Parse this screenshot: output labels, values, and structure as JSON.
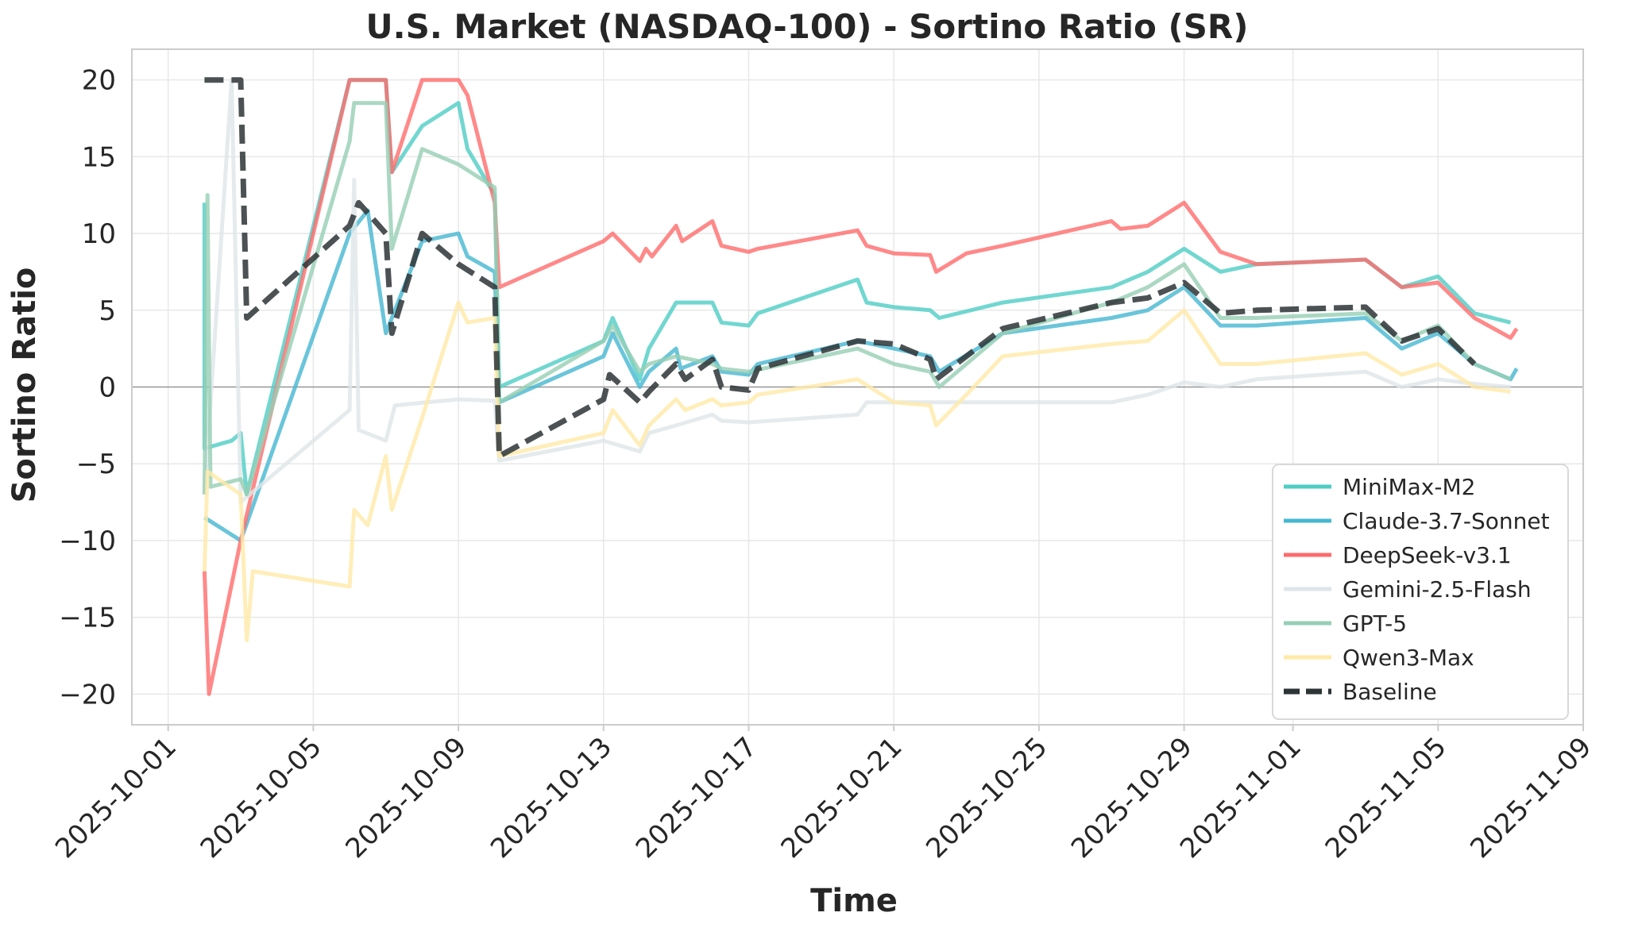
{
  "chart_data": {
    "type": "line",
    "title": "U.S. Market (NASDAQ-100) - Sortino Ratio (SR)",
    "xlabel": "Time",
    "ylabel": "Sortino Ratio",
    "x_axis_type": "date",
    "xlim": [
      "2025-09-30",
      "2025-11-09"
    ],
    "ylim": [
      -22,
      22
    ],
    "x_ticks": [
      "2025-10-01",
      "2025-10-05",
      "2025-10-09",
      "2025-10-13",
      "2025-10-17",
      "2025-10-21",
      "2025-10-25",
      "2025-10-29",
      "2025-11-01",
      "2025-11-05",
      "2025-11-09"
    ],
    "y_ticks": [
      -20,
      -15,
      -10,
      -5,
      0,
      5,
      10,
      15,
      20
    ],
    "y_tick_labels": [
      "−20",
      "−15",
      "−10",
      "−5",
      "0",
      "5",
      "10",
      "15",
      "20"
    ],
    "grid": true,
    "zero_line": true,
    "legend_position": "lower-right",
    "series": [
      {
        "name": "MiniMax-M2",
        "color": "#4ecdc4",
        "style": "solid",
        "points": [
          [
            "2025-10-02",
            12
          ],
          [
            "2025-10-02",
            -4
          ],
          [
            "2025-10-02 18:00",
            -3.5
          ],
          [
            "2025-10-03",
            -3
          ],
          [
            "2025-10-03 04:00",
            -7
          ],
          [
            "2025-10-06",
            20
          ],
          [
            "2025-10-07",
            20
          ],
          [
            "2025-10-07 04:00",
            14
          ],
          [
            "2025-10-08",
            17
          ],
          [
            "2025-10-09",
            18.5
          ],
          [
            "2025-10-09 06:00",
            15.5
          ],
          [
            "2025-10-10",
            12.5
          ],
          [
            "2025-10-10 03:00",
            0
          ],
          [
            "2025-10-13",
            3
          ],
          [
            "2025-10-13 06:00",
            4.5
          ],
          [
            "2025-10-14",
            0.5
          ],
          [
            "2025-10-14 06:00",
            2.5
          ],
          [
            "2025-10-15",
            5.5
          ],
          [
            "2025-10-16",
            5.5
          ],
          [
            "2025-10-16 06:00",
            4.2
          ],
          [
            "2025-10-17",
            4
          ],
          [
            "2025-10-17 06:00",
            4.8
          ],
          [
            "2025-10-20",
            7
          ],
          [
            "2025-10-20 06:00",
            5.5
          ],
          [
            "2025-10-21",
            5.2
          ],
          [
            "2025-10-22",
            5
          ],
          [
            "2025-10-22 06:00",
            4.5
          ],
          [
            "2025-10-24",
            5.5
          ],
          [
            "2025-10-27",
            6.5
          ],
          [
            "2025-10-28",
            7.5
          ],
          [
            "2025-10-29",
            9
          ],
          [
            "2025-10-30",
            7.5
          ],
          [
            "2025-10-31",
            8
          ],
          [
            "2025-11-03",
            8.3
          ],
          [
            "2025-11-04",
            6.5
          ],
          [
            "2025-11-05",
            7.2
          ],
          [
            "2025-11-06",
            4.8
          ],
          [
            "2025-11-07",
            4.2
          ]
        ]
      },
      {
        "name": "Claude-3.7-Sonnet",
        "color": "#45b7d1",
        "style": "solid",
        "points": [
          [
            "2025-10-02",
            -8.5
          ],
          [
            "2025-10-03",
            -10
          ],
          [
            "2025-10-06",
            10
          ],
          [
            "2025-10-06 12:00",
            11.5
          ],
          [
            "2025-10-07",
            3.5
          ],
          [
            "2025-10-08",
            9.5
          ],
          [
            "2025-10-09",
            10
          ],
          [
            "2025-10-09 06:00",
            8.5
          ],
          [
            "2025-10-10",
            7.5
          ],
          [
            "2025-10-10 03:00",
            -1
          ],
          [
            "2025-10-13",
            2
          ],
          [
            "2025-10-13 06:00",
            3.5
          ],
          [
            "2025-10-14",
            0
          ],
          [
            "2025-10-14 06:00",
            1
          ],
          [
            "2025-10-15",
            2.5
          ],
          [
            "2025-10-15 03:00",
            1.2
          ],
          [
            "2025-10-16",
            2
          ],
          [
            "2025-10-16 06:00",
            1
          ],
          [
            "2025-10-17",
            0.8
          ],
          [
            "2025-10-17 06:00",
            1.5
          ],
          [
            "2025-10-20",
            3
          ],
          [
            "2025-10-21",
            2.5
          ],
          [
            "2025-10-22",
            2
          ],
          [
            "2025-10-22 06:00",
            1
          ],
          [
            "2025-10-24",
            3.5
          ],
          [
            "2025-10-27",
            4.5
          ],
          [
            "2025-10-28",
            5
          ],
          [
            "2025-10-29",
            6.5
          ],
          [
            "2025-10-30",
            4
          ],
          [
            "2025-10-31",
            4
          ],
          [
            "2025-11-03",
            4.5
          ],
          [
            "2025-11-04",
            2.5
          ],
          [
            "2025-11-05",
            3.5
          ],
          [
            "2025-11-06",
            1.5
          ],
          [
            "2025-11-07",
            0.5
          ],
          [
            "2025-11-07 04:00",
            1.2
          ]
        ]
      },
      {
        "name": "DeepSeek-v3.1",
        "color": "#ff6b6b",
        "style": "solid",
        "points": [
          [
            "2025-10-02",
            -12
          ],
          [
            "2025-10-02 03:00",
            -20
          ],
          [
            "2025-10-03",
            -10
          ],
          [
            "2025-10-06",
            20
          ],
          [
            "2025-10-07",
            20
          ],
          [
            "2025-10-07 04:00",
            14
          ],
          [
            "2025-10-08",
            20
          ],
          [
            "2025-10-09",
            20
          ],
          [
            "2025-10-09 06:00",
            19
          ],
          [
            "2025-10-10",
            12
          ],
          [
            "2025-10-10 03:00",
            6.5
          ],
          [
            "2025-10-13",
            9.5
          ],
          [
            "2025-10-13 06:00",
            10
          ],
          [
            "2025-10-14",
            8.2
          ],
          [
            "2025-10-14 04:00",
            9
          ],
          [
            "2025-10-14 08:00",
            8.5
          ],
          [
            "2025-10-15",
            10.5
          ],
          [
            "2025-10-15 04:00",
            9.5
          ],
          [
            "2025-10-16",
            10.8
          ],
          [
            "2025-10-16 06:00",
            9.2
          ],
          [
            "2025-10-17",
            8.8
          ],
          [
            "2025-10-17 06:00",
            9
          ],
          [
            "2025-10-20",
            10.2
          ],
          [
            "2025-10-20 06:00",
            9.2
          ],
          [
            "2025-10-21",
            8.7
          ],
          [
            "2025-10-22",
            8.6
          ],
          [
            "2025-10-22 04:00",
            7.5
          ],
          [
            "2025-10-23",
            8.7
          ],
          [
            "2025-10-24",
            9.2
          ],
          [
            "2025-10-27",
            10.8
          ],
          [
            "2025-10-27 06:00",
            10.3
          ],
          [
            "2025-10-28",
            10.5
          ],
          [
            "2025-10-29",
            12
          ],
          [
            "2025-10-30",
            8.8
          ],
          [
            "2025-10-31",
            8
          ],
          [
            "2025-11-03",
            8.3
          ],
          [
            "2025-11-04",
            6.5
          ],
          [
            "2025-11-05",
            6.8
          ],
          [
            "2025-11-06",
            4.5
          ],
          [
            "2025-11-07",
            3.2
          ],
          [
            "2025-11-07 04:00",
            3.8
          ]
        ]
      },
      {
        "name": "Gemini-2.5-Flash",
        "color": "#dfe6e9",
        "style": "solid",
        "points": [
          [
            "2025-10-02",
            -7
          ],
          [
            "2025-10-02 18:00",
            20
          ],
          [
            "2025-10-03",
            -7.5
          ],
          [
            "2025-10-06",
            -1.5
          ],
          [
            "2025-10-06 03:00",
            13.5
          ],
          [
            "2025-10-06 06:00",
            -2.8
          ],
          [
            "2025-10-07",
            -3.5
          ],
          [
            "2025-10-07 06:00",
            -1.2
          ],
          [
            "2025-10-09",
            -0.8
          ],
          [
            "2025-10-10",
            -0.9
          ],
          [
            "2025-10-10 03:00",
            -4.8
          ],
          [
            "2025-10-13",
            -3.5
          ],
          [
            "2025-10-14",
            -4.2
          ],
          [
            "2025-10-14 06:00",
            -3
          ],
          [
            "2025-10-15",
            -2.5
          ],
          [
            "2025-10-16",
            -1.8
          ],
          [
            "2025-10-16 06:00",
            -2.2
          ],
          [
            "2025-10-17",
            -2.3
          ],
          [
            "2025-10-20",
            -1.8
          ],
          [
            "2025-10-20 06:00",
            -1
          ],
          [
            "2025-10-21",
            -1
          ],
          [
            "2025-10-22",
            -1
          ],
          [
            "2025-10-24",
            -1
          ],
          [
            "2025-10-27",
            -1
          ],
          [
            "2025-10-28",
            -0.5
          ],
          [
            "2025-10-29",
            0.3
          ],
          [
            "2025-10-30",
            0
          ],
          [
            "2025-10-31",
            0.5
          ],
          [
            "2025-11-03",
            1
          ],
          [
            "2025-11-04",
            0
          ],
          [
            "2025-11-05",
            0.5
          ],
          [
            "2025-11-06",
            0.2
          ],
          [
            "2025-11-07",
            0
          ]
        ]
      },
      {
        "name": "GPT-5",
        "color": "#96ceb4",
        "style": "solid",
        "points": [
          [
            "2025-10-02",
            -7
          ],
          [
            "2025-10-02 02:00",
            12.5
          ],
          [
            "2025-10-02 04:00",
            -6.5
          ],
          [
            "2025-10-03",
            -6
          ],
          [
            "2025-10-03 04:00",
            -7
          ],
          [
            "2025-10-06",
            16
          ],
          [
            "2025-10-06 03:00",
            18.5
          ],
          [
            "2025-10-07",
            18.5
          ],
          [
            "2025-10-07 04:00",
            9
          ],
          [
            "2025-10-08",
            15.5
          ],
          [
            "2025-10-09",
            14.5
          ],
          [
            "2025-10-10",
            13
          ],
          [
            "2025-10-10 03:00",
            -1
          ],
          [
            "2025-10-13",
            3
          ],
          [
            "2025-10-13 06:00",
            4
          ],
          [
            "2025-10-14",
            1
          ],
          [
            "2025-10-14 06:00",
            1.5
          ],
          [
            "2025-10-15",
            2
          ],
          [
            "2025-10-16",
            1.5
          ],
          [
            "2025-10-16 06:00",
            1.2
          ],
          [
            "2025-10-17",
            1
          ],
          [
            "2025-10-20",
            2.5
          ],
          [
            "2025-10-21",
            1.5
          ],
          [
            "2025-10-22",
            1
          ],
          [
            "2025-10-22 06:00",
            0
          ],
          [
            "2025-10-24",
            3.5
          ],
          [
            "2025-10-27",
            5.5
          ],
          [
            "2025-10-28",
            6.5
          ],
          [
            "2025-10-29",
            8
          ],
          [
            "2025-10-30",
            4.5
          ],
          [
            "2025-10-31",
            4.5
          ],
          [
            "2025-11-03",
            4.8
          ],
          [
            "2025-11-04",
            3
          ],
          [
            "2025-11-05",
            4
          ],
          [
            "2025-11-06",
            1.5
          ],
          [
            "2025-11-07",
            0.5
          ]
        ]
      },
      {
        "name": "Qwen3-Max",
        "color": "#ffeaa7",
        "style": "solid",
        "points": [
          [
            "2025-10-02",
            -12
          ],
          [
            "2025-10-02 02:00",
            -5.5
          ],
          [
            "2025-10-03",
            -7
          ],
          [
            "2025-10-03 04:00",
            -16.5
          ],
          [
            "2025-10-03 08:00",
            -12
          ],
          [
            "2025-10-06",
            -13
          ],
          [
            "2025-10-06 03:00",
            -8
          ],
          [
            "2025-10-06 12:00",
            -9
          ],
          [
            "2025-10-07",
            -4.5
          ],
          [
            "2025-10-07 04:00",
            -8
          ],
          [
            "2025-10-08",
            -2
          ],
          [
            "2025-10-09",
            5.5
          ],
          [
            "2025-10-09 06:00",
            4.2
          ],
          [
            "2025-10-10",
            4.5
          ],
          [
            "2025-10-10 03:00",
            -4.5
          ],
          [
            "2025-10-13",
            -3
          ],
          [
            "2025-10-13 06:00",
            -1.5
          ],
          [
            "2025-10-14",
            -3.8
          ],
          [
            "2025-10-14 06:00",
            -2.5
          ],
          [
            "2025-10-15",
            -0.8
          ],
          [
            "2025-10-15 06:00",
            -1.5
          ],
          [
            "2025-10-16",
            -0.8
          ],
          [
            "2025-10-16 06:00",
            -1.2
          ],
          [
            "2025-10-17",
            -1
          ],
          [
            "2025-10-17 06:00",
            -0.5
          ],
          [
            "2025-10-20",
            0.5
          ],
          [
            "2025-10-21",
            -1
          ],
          [
            "2025-10-22",
            -1.2
          ],
          [
            "2025-10-22 04:00",
            -2.5
          ],
          [
            "2025-10-23",
            -0.5
          ],
          [
            "2025-10-24",
            2
          ],
          [
            "2025-10-27",
            2.8
          ],
          [
            "2025-10-28",
            3
          ],
          [
            "2025-10-29",
            5
          ],
          [
            "2025-10-30",
            1.5
          ],
          [
            "2025-10-31",
            1.5
          ],
          [
            "2025-11-03",
            2.2
          ],
          [
            "2025-11-04",
            0.8
          ],
          [
            "2025-11-05",
            1.5
          ],
          [
            "2025-11-06",
            0
          ],
          [
            "2025-11-07",
            -0.3
          ]
        ]
      },
      {
        "name": "Baseline",
        "color": "#2d3436",
        "style": "dashed",
        "points": [
          [
            "2025-10-02",
            20
          ],
          [
            "2025-10-03",
            20
          ],
          [
            "2025-10-03 04:00",
            4.5
          ],
          [
            "2025-10-06",
            10.5
          ],
          [
            "2025-10-06 06:00",
            12
          ],
          [
            "2025-10-07",
            10
          ],
          [
            "2025-10-07 04:00",
            3.5
          ],
          [
            "2025-10-08",
            10
          ],
          [
            "2025-10-09",
            8
          ],
          [
            "2025-10-10",
            6.5
          ],
          [
            "2025-10-10 03:00",
            -4.5
          ],
          [
            "2025-10-13",
            -0.8
          ],
          [
            "2025-10-13 04:00",
            0.8
          ],
          [
            "2025-10-14",
            -1
          ],
          [
            "2025-10-14 06:00",
            -0.3
          ],
          [
            "2025-10-15",
            1.5
          ],
          [
            "2025-10-15 06:00",
            0.5
          ],
          [
            "2025-10-16",
            1.8
          ],
          [
            "2025-10-16 06:00",
            0
          ],
          [
            "2025-10-17",
            -0.2
          ],
          [
            "2025-10-17 06:00",
            1.2
          ],
          [
            "2025-10-20",
            3
          ],
          [
            "2025-10-21",
            2.8
          ],
          [
            "2025-10-22",
            1.8
          ],
          [
            "2025-10-22 04:00",
            0.5
          ],
          [
            "2025-10-24",
            3.8
          ],
          [
            "2025-10-27",
            5.5
          ],
          [
            "2025-10-28",
            5.8
          ],
          [
            "2025-10-29",
            6.8
          ],
          [
            "2025-10-30",
            4.8
          ],
          [
            "2025-10-31",
            5
          ],
          [
            "2025-11-03",
            5.2
          ],
          [
            "2025-11-04",
            3
          ],
          [
            "2025-11-05",
            3.8
          ],
          [
            "2025-11-06",
            1.5
          ]
        ]
      }
    ]
  }
}
